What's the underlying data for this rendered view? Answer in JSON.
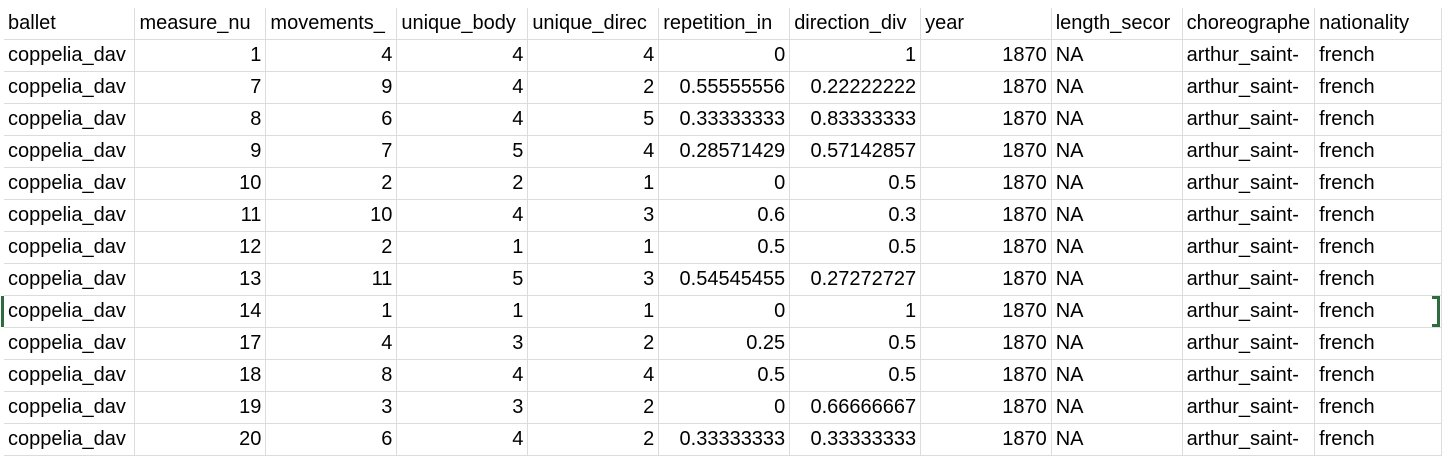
{
  "sheet": {
    "headers": [
      "ballet",
      "measure_nu",
      "movements_",
      "unique_body",
      "unique_direc",
      "repetition_in",
      "direction_div",
      "year",
      "length_secor",
      "choreographe",
      "nationality"
    ],
    "rows": [
      [
        "coppelia_dav",
        "1",
        "4",
        "4",
        "4",
        "0",
        "1",
        "1870",
        "NA",
        "arthur_saint-",
        "french"
      ],
      [
        "coppelia_dav",
        "7",
        "9",
        "4",
        "2",
        "0.55555556",
        "0.22222222",
        "1870",
        "NA",
        "arthur_saint-",
        "french"
      ],
      [
        "coppelia_dav",
        "8",
        "6",
        "4",
        "5",
        "0.33333333",
        "0.83333333",
        "1870",
        "NA",
        "arthur_saint-",
        "french"
      ],
      [
        "coppelia_dav",
        "9",
        "7",
        "5",
        "4",
        "0.28571429",
        "0.57142857",
        "1870",
        "NA",
        "arthur_saint-",
        "french"
      ],
      [
        "coppelia_dav",
        "10",
        "2",
        "2",
        "1",
        "0",
        "0.5",
        "1870",
        "NA",
        "arthur_saint-",
        "french"
      ],
      [
        "coppelia_dav",
        "11",
        "10",
        "4",
        "3",
        "0.6",
        "0.3",
        "1870",
        "NA",
        "arthur_saint-",
        "french"
      ],
      [
        "coppelia_dav",
        "12",
        "2",
        "1",
        "1",
        "0.5",
        "0.5",
        "1870",
        "NA",
        "arthur_saint-",
        "french"
      ],
      [
        "coppelia_dav",
        "13",
        "11",
        "5",
        "3",
        "0.54545455",
        "0.27272727",
        "1870",
        "NA",
        "arthur_saint-",
        "french"
      ],
      [
        "coppelia_dav",
        "14",
        "1",
        "1",
        "1",
        "0",
        "1",
        "1870",
        "NA",
        "arthur_saint-",
        "french"
      ],
      [
        "coppelia_dav",
        "17",
        "4",
        "3",
        "2",
        "0.25",
        "0.5",
        "1870",
        "NA",
        "arthur_saint-",
        "french"
      ],
      [
        "coppelia_dav",
        "18",
        "8",
        "4",
        "4",
        "0.5",
        "0.5",
        "1870",
        "NA",
        "arthur_saint-",
        "french"
      ],
      [
        "coppelia_dav",
        "19",
        "3",
        "3",
        "2",
        "0",
        "0.66666667",
        "1870",
        "NA",
        "arthur_saint-",
        "french"
      ],
      [
        "coppelia_dav",
        "20",
        "6",
        "4",
        "2",
        "0.33333333",
        "0.33333333",
        "1870",
        "NA",
        "arthur_saint-",
        "french"
      ]
    ],
    "selection_color": "#2e6b3e",
    "gridline_color": "#dcdcdc"
  }
}
